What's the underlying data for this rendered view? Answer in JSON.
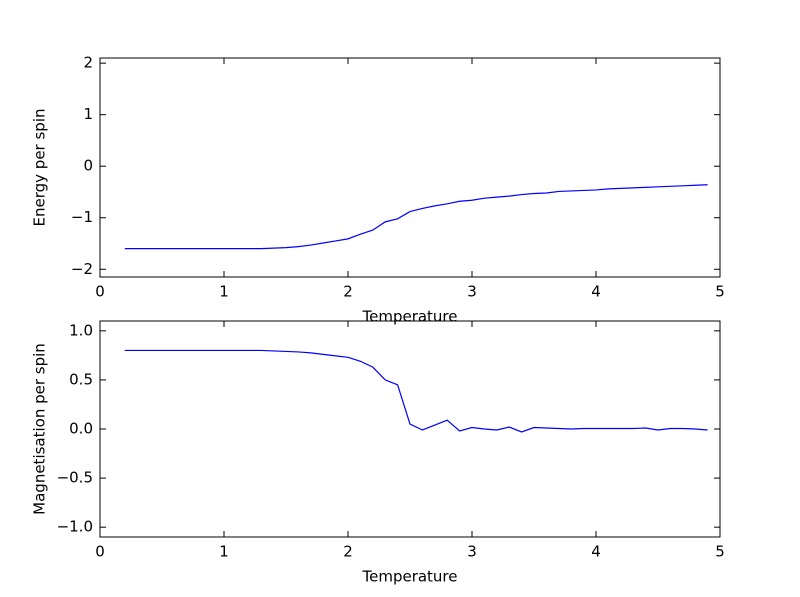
{
  "chart_data": [
    {
      "type": "line",
      "xlabel": "Temperature",
      "ylabel": "Energy per spin",
      "color": "#0000ff",
      "x": [
        0.2,
        0.3,
        0.4,
        0.5,
        0.6,
        0.7,
        0.8,
        0.9,
        1.0,
        1.1,
        1.2,
        1.3,
        1.4,
        1.5,
        1.6,
        1.7,
        1.8,
        1.9,
        2.0,
        2.1,
        2.2,
        2.3,
        2.4,
        2.5,
        2.6,
        2.7,
        2.8,
        2.9,
        3.0,
        3.1,
        3.2,
        3.3,
        3.4,
        3.5,
        3.6,
        3.7,
        3.8,
        3.9,
        4.0,
        4.1,
        4.2,
        4.3,
        4.4,
        4.5,
        4.6,
        4.7,
        4.8,
        4.9
      ],
      "values": [
        -1.6,
        -1.6,
        -1.6,
        -1.6,
        -1.6,
        -1.6,
        -1.6,
        -1.6,
        -1.6,
        -1.6,
        -1.6,
        -1.6,
        -1.59,
        -1.58,
        -1.56,
        -1.53,
        -1.49,
        -1.45,
        -1.41,
        -1.32,
        -1.24,
        -1.08,
        -1.02,
        -0.88,
        -0.82,
        -0.77,
        -0.73,
        -0.68,
        -0.66,
        -0.62,
        -0.6,
        -0.58,
        -0.55,
        -0.53,
        -0.52,
        -0.49,
        -0.48,
        -0.47,
        -0.46,
        -0.44,
        -0.43,
        -0.42,
        -0.41,
        -0.4,
        -0.39,
        -0.38,
        -0.37,
        -0.36
      ],
      "xlim": [
        0,
        5
      ],
      "xticks": [
        0,
        1,
        2,
        3,
        4,
        5
      ],
      "ylim": [
        -2.15,
        2.1
      ],
      "yticks": [
        {
          "value": -2,
          "label": "−2"
        },
        {
          "value": -1,
          "label": "−1"
        },
        0,
        1,
        2
      ]
    },
    {
      "type": "line",
      "xlabel": "Temperature",
      "ylabel": "Magnetisation per spin",
      "color": "#0000ff",
      "x": [
        0.2,
        0.3,
        0.4,
        0.5,
        0.6,
        0.7,
        0.8,
        0.9,
        1.0,
        1.1,
        1.2,
        1.3,
        1.4,
        1.5,
        1.6,
        1.7,
        1.8,
        1.9,
        2.0,
        2.1,
        2.2,
        2.3,
        2.4,
        2.5,
        2.6,
        2.7,
        2.8,
        2.9,
        3.0,
        3.1,
        3.2,
        3.3,
        3.4,
        3.5,
        3.6,
        3.7,
        3.8,
        3.9,
        4.0,
        4.1,
        4.2,
        4.3,
        4.4,
        4.5,
        4.6,
        4.7,
        4.8,
        4.9
      ],
      "values": [
        0.8,
        0.8,
        0.8,
        0.8,
        0.8,
        0.8,
        0.8,
        0.8,
        0.8,
        0.8,
        0.8,
        0.8,
        0.795,
        0.79,
        0.785,
        0.775,
        0.76,
        0.745,
        0.73,
        0.69,
        0.63,
        0.5,
        0.45,
        0.05,
        -0.01,
        0.04,
        0.09,
        -0.02,
        0.015,
        0.0,
        -0.01,
        0.02,
        -0.03,
        0.015,
        0.01,
        0.005,
        0.0,
        0.005,
        0.005,
        0.005,
        0.005,
        0.005,
        0.01,
        -0.01,
        0.005,
        0.005,
        0.0,
        -0.01
      ],
      "xlim": [
        0,
        5
      ],
      "xticks": [
        0,
        1,
        2,
        3,
        4,
        5
      ],
      "ylim": [
        -1.1,
        1.1
      ],
      "yticks": [
        {
          "value": -1,
          "label": "−1.0"
        },
        {
          "value": -0.5,
          "label": "−0.5"
        },
        {
          "value": 0,
          "label": "0.0"
        },
        0.5,
        {
          "value": 1,
          "label": "1.0"
        }
      ]
    }
  ]
}
